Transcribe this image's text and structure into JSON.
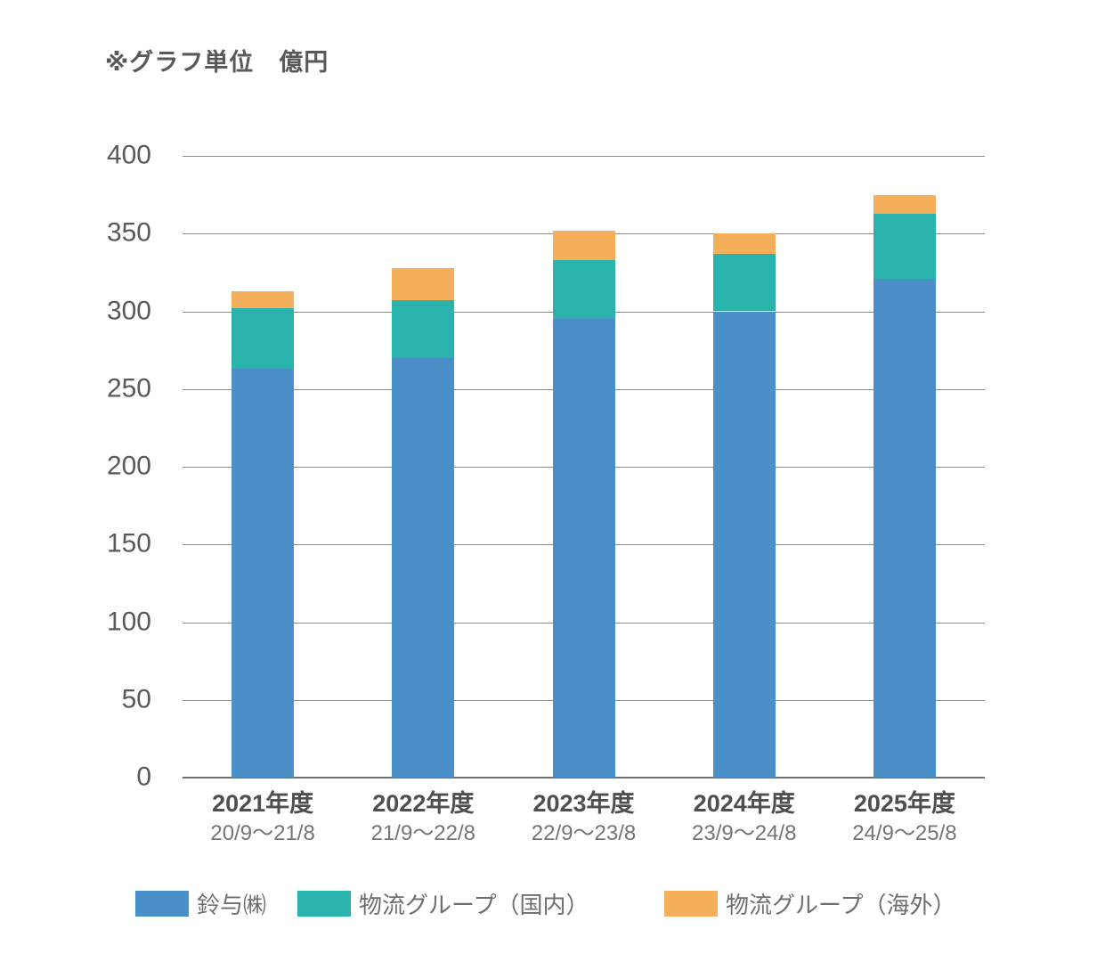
{
  "chart_data": {
    "type": "bar",
    "stacked": true,
    "unit_note": "※グラフ単位　億円",
    "categories": [
      "2021年度",
      "2022年度",
      "2023年度",
      "2024年度",
      "2025年度"
    ],
    "category_sublabels": [
      "20/9〜21/8",
      "21/9〜22/8",
      "22/9〜23/8",
      "23/9〜24/8",
      "24/9〜25/8"
    ],
    "series": [
      {
        "name": "鈴与㈱",
        "color": "#4B8FC9",
        "values": [
          263,
          270,
          295,
          300,
          321
        ]
      },
      {
        "name": "物流グループ（国内）",
        "color": "#2AB3AC",
        "values": [
          39,
          37,
          38,
          37,
          42
        ]
      },
      {
        "name": "物流グループ（海外）",
        "color": "#F5AE59",
        "values": [
          11,
          21,
          19,
          13,
          12
        ]
      }
    ],
    "ylim": [
      0,
      400
    ],
    "ytick_step": 50,
    "yticks": [
      0,
      50,
      100,
      150,
      200,
      250,
      300,
      350,
      400
    ],
    "grid": true,
    "legend_position": "bottom",
    "gridline_color": "#8a8a8a",
    "axis_color": "#707070"
  }
}
